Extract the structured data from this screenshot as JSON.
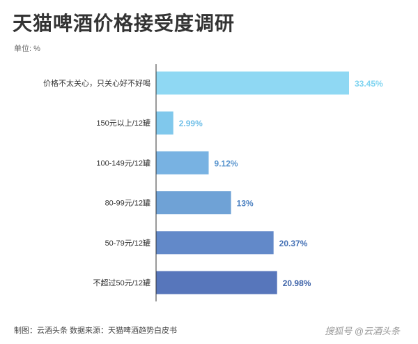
{
  "title": "天猫啤酒价格接受度调研",
  "unit": "单位: %",
  "footer": "制图：云酒头条 数据来源：天猫啤酒趋势白皮书",
  "watermark": "搜狐号 @云酒头条",
  "colors": {
    "bars": [
      "#8fd8f3",
      "#80c8ec",
      "#78b2e2",
      "#6fa2d6",
      "#6289c9",
      "#5776bb"
    ],
    "labels": [
      "#7dd3f0",
      "#6fbfe8",
      "#5d97cf",
      "#4f83c2",
      "#4672b6",
      "#3d62a8"
    ],
    "axis": "#333333"
  },
  "chart_data": {
    "type": "bar",
    "orientation": "horizontal",
    "categories": [
      "价格不太关心，只关心好不好喝",
      "150元以上/12罐",
      "100-149元/12罐",
      "80-99元/12罐",
      "50-79元/12罐",
      "不超过50元/12罐"
    ],
    "values": [
      33.45,
      2.99,
      9.12,
      13,
      20.37,
      20.98
    ],
    "value_labels": [
      "33.45%",
      "2.99%",
      "9.12%",
      "13%",
      "20.37%",
      "20.98%"
    ],
    "xlim": [
      0,
      33.45
    ],
    "grid": false
  }
}
